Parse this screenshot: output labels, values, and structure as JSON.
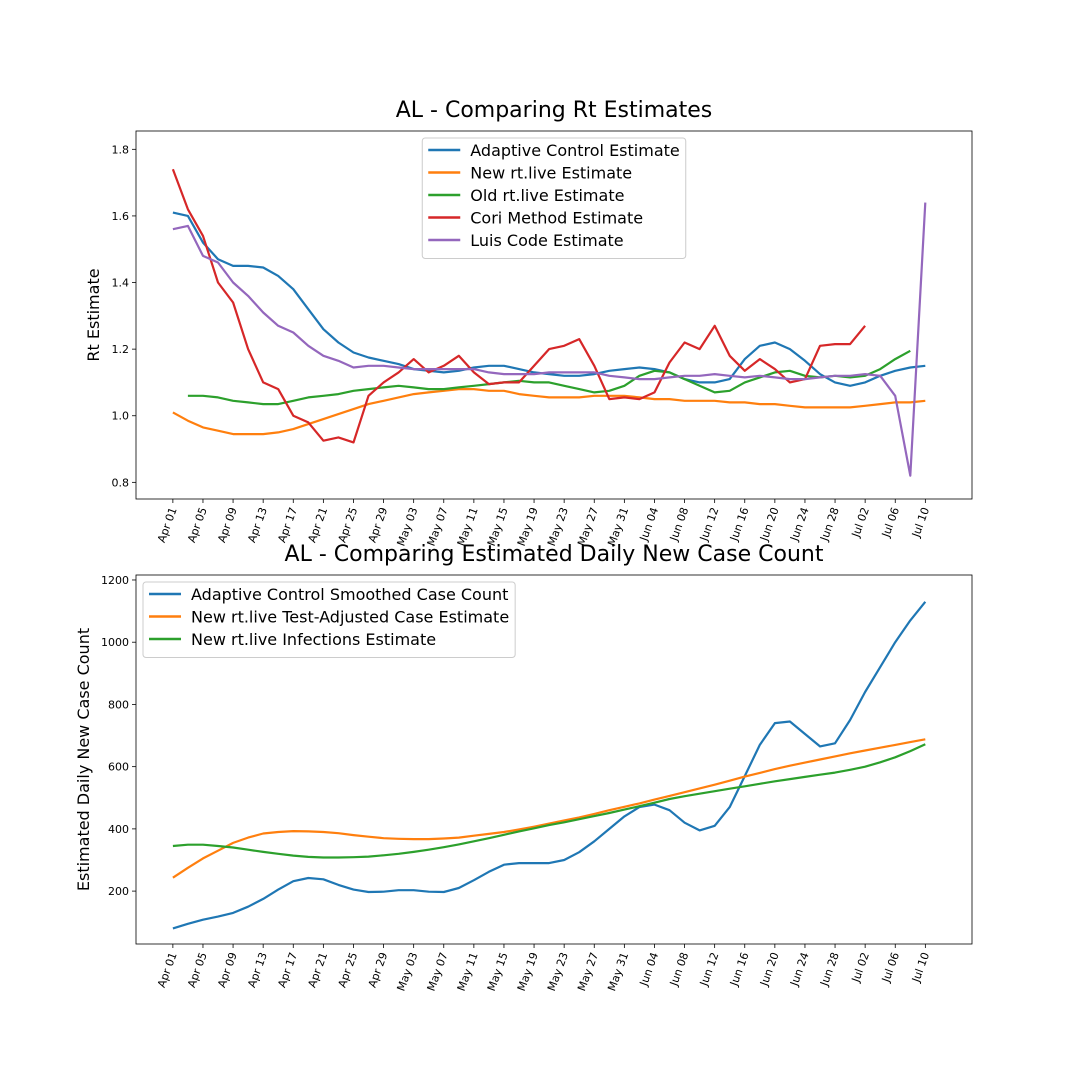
{
  "chart_data": [
    {
      "type": "line",
      "title": "AL - Comparing Rt Estimates",
      "ylabel": "Rt Estimate",
      "legend": "upper center",
      "x": [
        "Apr 01",
        "Apr 03",
        "Apr 05",
        "Apr 07",
        "Apr 09",
        "Apr 11",
        "Apr 13",
        "Apr 15",
        "Apr 17",
        "Apr 19",
        "Apr 21",
        "Apr 23",
        "Apr 25",
        "Apr 27",
        "Apr 29",
        "May 01",
        "May 03",
        "May 05",
        "May 07",
        "May 09",
        "May 11",
        "May 13",
        "May 15",
        "May 17",
        "May 19",
        "May 21",
        "May 23",
        "May 25",
        "May 27",
        "May 29",
        "May 31",
        "Jun 02",
        "Jun 04",
        "Jun 06",
        "Jun 08",
        "Jun 10",
        "Jun 12",
        "Jun 14",
        "Jun 16",
        "Jun 18",
        "Jun 20",
        "Jun 22",
        "Jun 24",
        "Jun 26",
        "Jun 28",
        "Jun 30",
        "Jul 02",
        "Jul 04",
        "Jul 06",
        "Jul 08",
        "Jul 10"
      ],
      "xticks": [
        "Apr 01",
        "Apr 05",
        "Apr 09",
        "Apr 13",
        "Apr 17",
        "Apr 21",
        "Apr 25",
        "Apr 29",
        "May 03",
        "May 07",
        "May 11",
        "May 15",
        "May 19",
        "May 23",
        "May 27",
        "May 31",
        "Jun 04",
        "Jun 08",
        "Jun 12",
        "Jun 16",
        "Jun 20",
        "Jun 24",
        "Jun 28",
        "Jul 02",
        "Jul 06",
        "Jul 10"
      ],
      "ylim": [
        0.75,
        1.855
      ],
      "yticks": [
        0.8,
        {
          "value": 1,
          "label": "1.0"
        },
        1.2,
        1.4,
        1.6,
        1.8
      ],
      "series": [
        {
          "name": "Adaptive Control Estimate",
          "color": "#1f77b4",
          "values": [
            1.61,
            1.6,
            1.52,
            1.47,
            1.45,
            1.45,
            1.445,
            1.42,
            1.38,
            1.32,
            1.26,
            1.22,
            1.19,
            1.175,
            1.165,
            1.155,
            1.14,
            1.135,
            1.13,
            1.135,
            1.145,
            1.15,
            1.15,
            1.14,
            1.13,
            1.125,
            1.12,
            1.12,
            1.125,
            1.135,
            1.14,
            1.145,
            1.14,
            1.13,
            1.11,
            1.1,
            1.1,
            1.11,
            1.17,
            1.21,
            1.22,
            1.2,
            1.165,
            1.125,
            1.1,
            1.09,
            1.1,
            1.12,
            1.135,
            1.145,
            1.15
          ]
        },
        {
          "name": "New rt.live Estimate",
          "color": "#ff7f0e",
          "values": [
            1.01,
            0.985,
            0.965,
            0.955,
            0.945,
            0.945,
            0.945,
            0.95,
            0.96,
            0.975,
            0.99,
            1.005,
            1.02,
            1.035,
            1.045,
            1.055,
            1.065,
            1.07,
            1.075,
            1.08,
            1.08,
            1.075,
            1.075,
            1.065,
            1.06,
            1.055,
            1.055,
            1.055,
            1.06,
            1.06,
            1.06,
            1.055,
            1.05,
            1.05,
            1.045,
            1.045,
            1.045,
            1.04,
            1.04,
            1.035,
            1.035,
            1.03,
            1.025,
            1.025,
            1.025,
            1.025,
            1.03,
            1.035,
            1.04,
            1.04,
            1.045
          ]
        },
        {
          "name": "Old rt.live Estimate",
          "color": "#2ca02c",
          "values": [
            null,
            1.06,
            1.06,
            1.055,
            1.045,
            1.04,
            1.035,
            1.035,
            1.045,
            1.055,
            1.06,
            1.065,
            1.075,
            1.08,
            1.085,
            1.09,
            1.085,
            1.08,
            1.08,
            1.085,
            1.09,
            1.095,
            1.1,
            1.105,
            1.1,
            1.1,
            1.09,
            1.08,
            1.07,
            1.075,
            1.09,
            1.12,
            1.135,
            1.13,
            1.11,
            1.09,
            1.07,
            1.075,
            1.1,
            1.115,
            1.13,
            1.135,
            1.12,
            1.115,
            1.12,
            1.115,
            1.12,
            1.14,
            1.17,
            1.195,
            null
          ]
        },
        {
          "name": "Cori Method Estimate",
          "color": "#d62728",
          "values": [
            1.74,
            1.62,
            1.54,
            1.4,
            1.34,
            1.2,
            1.1,
            1.08,
            1.0,
            0.98,
            0.925,
            0.935,
            0.92,
            1.06,
            1.1,
            1.13,
            1.17,
            1.13,
            1.15,
            1.18,
            1.13,
            1.095,
            1.1,
            1.1,
            1.15,
            1.2,
            1.21,
            1.23,
            1.15,
            1.05,
            1.055,
            1.05,
            1.07,
            1.16,
            1.22,
            1.2,
            1.27,
            1.18,
            1.135,
            1.17,
            1.14,
            1.1,
            1.11,
            1.21,
            1.215,
            1.215,
            1.27,
            null,
            null,
            null,
            null
          ]
        },
        {
          "name": "Luis Code Estimate",
          "color": "#9467bd",
          "values": [
            1.56,
            1.57,
            1.48,
            1.46,
            1.4,
            1.36,
            1.31,
            1.27,
            1.25,
            1.21,
            1.18,
            1.165,
            1.145,
            1.15,
            1.15,
            1.145,
            1.14,
            1.14,
            1.14,
            1.14,
            1.14,
            1.13,
            1.125,
            1.125,
            1.125,
            1.13,
            1.13,
            1.13,
            1.13,
            1.12,
            1.115,
            1.11,
            1.11,
            1.115,
            1.12,
            1.12,
            1.125,
            1.12,
            1.115,
            1.12,
            1.115,
            1.11,
            1.11,
            1.115,
            1.12,
            1.12,
            1.125,
            1.12,
            1.06,
            0.82,
            1.64
          ]
        }
      ]
    },
    {
      "type": "line",
      "title": "AL - Comparing Estimated Daily New Case Count",
      "ylabel": "Estimated Daily New Case Count",
      "legend": "upper left",
      "x": [
        "Apr 01",
        "Apr 03",
        "Apr 05",
        "Apr 07",
        "Apr 09",
        "Apr 11",
        "Apr 13",
        "Apr 15",
        "Apr 17",
        "Apr 19",
        "Apr 21",
        "Apr 23",
        "Apr 25",
        "Apr 27",
        "Apr 29",
        "May 01",
        "May 03",
        "May 05",
        "May 07",
        "May 09",
        "May 11",
        "May 13",
        "May 15",
        "May 17",
        "May 19",
        "May 21",
        "May 23",
        "May 25",
        "May 27",
        "May 29",
        "May 31",
        "Jun 02",
        "Jun 04",
        "Jun 06",
        "Jun 08",
        "Jun 10",
        "Jun 12",
        "Jun 14",
        "Jun 16",
        "Jun 18",
        "Jun 20",
        "Jun 22",
        "Jun 24",
        "Jun 26",
        "Jun 28",
        "Jun 30",
        "Jul 02",
        "Jul 04",
        "Jul 06",
        "Jul 08",
        "Jul 10"
      ],
      "xticks": [
        "Apr 01",
        "Apr 05",
        "Apr 09",
        "Apr 13",
        "Apr 17",
        "Apr 21",
        "Apr 25",
        "Apr 29",
        "May 03",
        "May 07",
        "May 11",
        "May 15",
        "May 19",
        "May 23",
        "May 27",
        "May 31",
        "Jun 04",
        "Jun 08",
        "Jun 12",
        "Jun 16",
        "Jun 20",
        "Jun 24",
        "Jun 28",
        "Jul 02",
        "Jul 06",
        "Jul 10"
      ],
      "ylim": [
        30,
        1216
      ],
      "yticks": [
        200,
        400,
        600,
        800,
        1000,
        1200
      ],
      "series": [
        {
          "name": "Adaptive Control Smoothed Case Count",
          "color": "#1f77b4",
          "values": [
            80,
            95,
            108,
            118,
            130,
            150,
            175,
            205,
            232,
            242,
            238,
            220,
            205,
            197,
            198,
            203,
            203,
            198,
            197,
            210,
            235,
            262,
            285,
            290,
            290,
            290,
            300,
            325,
            360,
            400,
            440,
            470,
            478,
            460,
            420,
            395,
            410,
            470,
            570,
            670,
            740,
            745,
            705,
            665,
            675,
            750,
            840,
            920,
            1000,
            1070,
            1130
          ]
        },
        {
          "name": "New rt.live Test-Adjusted Case Estimate",
          "color": "#ff7f0e",
          "values": [
            243,
            275,
            305,
            330,
            355,
            372,
            385,
            390,
            393,
            392,
            390,
            386,
            380,
            375,
            370,
            368,
            367,
            367,
            369,
            372,
            378,
            384,
            390,
            398,
            407,
            417,
            427,
            437,
            448,
            460,
            471,
            482,
            494,
            506,
            518,
            530,
            542,
            555,
            568,
            580,
            592,
            603,
            613,
            623,
            633,
            643,
            652,
            661,
            670,
            679,
            688
          ]
        },
        {
          "name": "New rt.live Infections Estimate",
          "color": "#2ca02c",
          "values": [
            345,
            349,
            349,
            345,
            340,
            333,
            326,
            320,
            314,
            310,
            308,
            308,
            309,
            311,
            315,
            320,
            326,
            333,
            341,
            350,
            360,
            370,
            381,
            392,
            402,
            412,
            421,
            431,
            441,
            451,
            462,
            473,
            484,
            496,
            505,
            513,
            521,
            529,
            537,
            545,
            553,
            560,
            567,
            574,
            581,
            590,
            600,
            614,
            630,
            650,
            672
          ]
        }
      ]
    }
  ]
}
